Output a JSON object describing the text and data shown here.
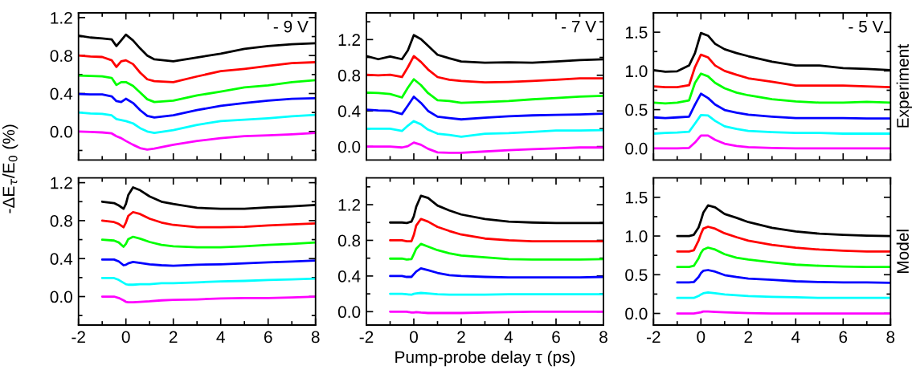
{
  "chart_data": [
    {
      "type": "line",
      "x": [
        -2,
        -1.5,
        -1,
        -0.6,
        -0.4,
        -0.2,
        0,
        0.3,
        0.6,
        0.9,
        1.2,
        2,
        3,
        4,
        5,
        6,
        7,
        8
      ],
      "xlim": [
        -2,
        8
      ],
      "ylim": [
        -0.3,
        1.25
      ],
      "xticks": [
        -2,
        {
          "value": -1,
          "label": null
        },
        0,
        {
          "value": 1,
          "label": null
        },
        2,
        {
          "value": 3,
          "label": null
        },
        4,
        {
          "value": 5,
          "label": null
        },
        6,
        {
          "value": 7,
          "label": null
        },
        8
      ],
      "yticks": [
        {
          "value": -0.2,
          "label": null
        },
        {
          "value": 0,
          "label": "0.0"
        },
        {
          "value": 0.2,
          "label": null
        },
        {
          "value": 0.4,
          "label": "0.4"
        },
        {
          "value": 0.6,
          "label": null
        },
        {
          "value": 0.8,
          "label": "0.8"
        },
        {
          "value": 1.0,
          "label": null
        },
        {
          "value": 1.2,
          "label": "1.2"
        }
      ],
      "tick_labels": "y",
      "annotations": [
        "- 9 V"
      ],
      "ylabel": "-ΔE$_{τ}$/E$_{0}$ (%)",
      "series": [
        {
          "color": "#000000",
          "values": [
            1.01,
            0.99,
            0.98,
            0.97,
            0.9,
            0.96,
            1.02,
            0.96,
            0.875,
            0.8,
            0.76,
            0.74,
            0.78,
            0.82,
            0.87,
            0.9,
            0.92,
            0.93
          ]
        },
        {
          "color": "#ff0000",
          "values": [
            0.8,
            0.79,
            0.785,
            0.75,
            0.68,
            0.74,
            0.75,
            0.71,
            0.62,
            0.55,
            0.53,
            0.52,
            0.58,
            0.635,
            0.66,
            0.69,
            0.72,
            0.73
          ]
        },
        {
          "color": "#00ff00",
          "values": [
            0.59,
            0.585,
            0.58,
            0.565,
            0.49,
            0.52,
            0.52,
            0.48,
            0.41,
            0.34,
            0.31,
            0.325,
            0.38,
            0.42,
            0.465,
            0.485,
            0.52,
            0.54
          ]
        },
        {
          "color": "#0000ff",
          "values": [
            0.395,
            0.39,
            0.39,
            0.37,
            0.32,
            0.31,
            0.345,
            0.3,
            0.225,
            0.165,
            0.147,
            0.17,
            0.225,
            0.27,
            0.3,
            0.325,
            0.345,
            0.35
          ]
        },
        {
          "color": "#00ffff",
          "values": [
            0.2,
            0.19,
            0.185,
            0.17,
            0.13,
            0.12,
            0.11,
            0.085,
            0.035,
            0.0,
            -0.015,
            0.015,
            0.07,
            0.11,
            0.125,
            0.14,
            0.16,
            0.175
          ]
        },
        {
          "color": "#ff00ff",
          "values": [
            0.0,
            -0.005,
            -0.01,
            -0.02,
            -0.05,
            -0.07,
            -0.1,
            -0.14,
            -0.175,
            -0.19,
            -0.18,
            -0.14,
            -0.1,
            -0.07,
            -0.05,
            -0.04,
            -0.03,
            -0.015
          ]
        }
      ]
    },
    {
      "type": "line",
      "x": [
        -2,
        -1.5,
        -1,
        -0.5,
        -0.25,
        0,
        0.3,
        0.6,
        1,
        1.5,
        2,
        3,
        4,
        5,
        6,
        7,
        8
      ],
      "xlim": [
        -2,
        8
      ],
      "ylim": [
        -0.15,
        1.5
      ],
      "xticks": [
        -2,
        {
          "value": -1,
          "label": null
        },
        0,
        {
          "value": 1,
          "label": null
        },
        2,
        {
          "value": 3,
          "label": null
        },
        4,
        {
          "value": 5,
          "label": null
        },
        6,
        {
          "value": 7,
          "label": null
        },
        8
      ],
      "yticks": [
        {
          "value": 0,
          "label": "0.0"
        },
        {
          "value": 0.2,
          "label": null
        },
        {
          "value": 0.4,
          "label": "0.4"
        },
        {
          "value": 0.6,
          "label": null
        },
        {
          "value": 0.8,
          "label": "0.8"
        },
        {
          "value": 1.0,
          "label": null
        },
        {
          "value": 1.2,
          "label": "1.2"
        },
        {
          "value": 1.4,
          "label": null
        }
      ],
      "tick_labels": "y",
      "annotations": [
        "- 7 V"
      ],
      "series": [
        {
          "color": "#000000",
          "values": [
            1.015,
            0.98,
            1.01,
            0.98,
            1.08,
            1.25,
            1.205,
            1.13,
            1.03,
            0.99,
            0.955,
            0.94,
            0.945,
            0.94,
            0.955,
            0.97,
            0.98
          ]
        },
        {
          "color": "#ff0000",
          "values": [
            0.805,
            0.8,
            0.805,
            0.78,
            0.89,
            1.015,
            0.95,
            0.865,
            0.78,
            0.75,
            0.735,
            0.72,
            0.725,
            0.735,
            0.75,
            0.765,
            0.765
          ]
        },
        {
          "color": "#00ff00",
          "values": [
            0.605,
            0.6,
            0.59,
            0.55,
            0.66,
            0.755,
            0.69,
            0.6,
            0.52,
            0.51,
            0.49,
            0.5,
            0.51,
            0.53,
            0.545,
            0.56,
            0.57
          ]
        },
        {
          "color": "#0000ff",
          "values": [
            0.415,
            0.405,
            0.4,
            0.365,
            0.46,
            0.56,
            0.49,
            0.4,
            0.335,
            0.32,
            0.305,
            0.325,
            0.34,
            0.35,
            0.355,
            0.36,
            0.37
          ]
        },
        {
          "color": "#00ffff",
          "values": [
            0.2,
            0.2,
            0.2,
            0.175,
            0.235,
            0.285,
            0.25,
            0.19,
            0.145,
            0.13,
            0.11,
            0.145,
            0.15,
            0.165,
            0.18,
            0.18,
            0.185
          ]
        },
        {
          "color": "#ff00ff",
          "values": [
            0.0,
            0.0,
            0.0,
            -0.01,
            0.005,
            0.045,
            0.02,
            -0.025,
            -0.065,
            -0.07,
            -0.07,
            -0.055,
            -0.04,
            -0.03,
            -0.02,
            -0.01,
            -0.01
          ]
        }
      ]
    },
    {
      "type": "line",
      "x": [
        -2,
        -1.5,
        -1,
        -0.5,
        -0.25,
        0,
        0.3,
        0.6,
        1,
        1.5,
        2,
        3,
        4,
        5,
        6,
        7,
        8
      ],
      "xlim": [
        -2,
        8
      ],
      "ylim": [
        -0.15,
        1.75
      ],
      "xticks": [
        -2,
        {
          "value": -1,
          "label": null
        },
        0,
        {
          "value": 1,
          "label": null
        },
        2,
        {
          "value": 3,
          "label": null
        },
        4,
        {
          "value": 5,
          "label": null
        },
        6,
        {
          "value": 7,
          "label": null
        },
        8
      ],
      "yticks": [
        {
          "value": 0,
          "label": "0.0"
        },
        {
          "value": 0.25,
          "label": null
        },
        {
          "value": 0.5,
          "label": "0.5"
        },
        {
          "value": 0.75,
          "label": null
        },
        {
          "value": 1.0,
          "label": "1.0"
        },
        {
          "value": 1.25,
          "label": null
        },
        {
          "value": 1.5,
          "label": "1.5"
        }
      ],
      "tick_labels": "y",
      "annotations": [
        "- 5 V"
      ],
      "y2label": "Experiment",
      "series": [
        {
          "color": "#000000",
          "values": [
            1.01,
            0.99,
            0.995,
            1.07,
            1.23,
            1.49,
            1.455,
            1.35,
            1.28,
            1.23,
            1.19,
            1.12,
            1.07,
            1.07,
            1.035,
            1.025,
            1.01
          ]
        },
        {
          "color": "#ff0000",
          "values": [
            0.8,
            0.79,
            0.79,
            0.815,
            1.05,
            1.21,
            1.175,
            1.07,
            1.0,
            0.95,
            0.905,
            0.86,
            0.81,
            0.81,
            0.81,
            0.8,
            0.79
          ]
        },
        {
          "color": "#00ff00",
          "values": [
            0.59,
            0.58,
            0.59,
            0.62,
            0.845,
            0.965,
            0.93,
            0.845,
            0.775,
            0.72,
            0.685,
            0.635,
            0.605,
            0.59,
            0.59,
            0.6,
            0.59
          ]
        },
        {
          "color": "#0000ff",
          "values": [
            0.4,
            0.39,
            0.4,
            0.41,
            0.565,
            0.705,
            0.65,
            0.565,
            0.495,
            0.46,
            0.435,
            0.41,
            0.39,
            0.39,
            0.39,
            0.385,
            0.385
          ]
        },
        {
          "color": "#00ffff",
          "values": [
            0.19,
            0.2,
            0.205,
            0.215,
            0.32,
            0.43,
            0.425,
            0.355,
            0.285,
            0.25,
            0.225,
            0.21,
            0.2,
            0.2,
            0.19,
            0.19,
            0.19
          ]
        },
        {
          "color": "#ff00ff",
          "values": [
            0.0,
            0.0,
            0.0,
            0.005,
            0.075,
            0.165,
            0.165,
            0.11,
            0.06,
            0.03,
            0.015,
            0.005,
            0.0,
            0.0,
            0.0,
            0.0,
            0.0
          ]
        }
      ]
    },
    {
      "type": "line",
      "x": [
        -1,
        -0.5,
        -0.3,
        -0.1,
        0,
        0.1,
        0.3,
        0.6,
        1,
        1.5,
        2,
        3,
        4,
        5,
        6,
        7,
        8
      ],
      "xlim": [
        -2,
        8
      ],
      "ylim": [
        -0.3,
        1.25
      ],
      "xticks": [
        -2,
        {
          "value": -1,
          "label": null
        },
        0,
        {
          "value": 1,
          "label": null
        },
        2,
        {
          "value": 3,
          "label": null
        },
        4,
        {
          "value": 5,
          "label": null
        },
        6,
        {
          "value": 7,
          "label": null
        },
        8
      ],
      "yticks": [
        {
          "value": -0.2,
          "label": null
        },
        {
          "value": 0,
          "label": "0.0"
        },
        {
          "value": 0.2,
          "label": null
        },
        {
          "value": 0.4,
          "label": "0.4"
        },
        {
          "value": 0.6,
          "label": null
        },
        {
          "value": 0.8,
          "label": "0.8"
        },
        {
          "value": 1.0,
          "label": null
        },
        {
          "value": 1.2,
          "label": "1.2"
        }
      ],
      "series": [
        {
          "color": "#000000",
          "values": [
            1.0,
            0.985,
            0.96,
            0.925,
            0.975,
            1.07,
            1.15,
            1.12,
            1.055,
            1.0,
            0.975,
            0.935,
            0.925,
            0.925,
            0.94,
            0.95,
            0.965
          ]
        },
        {
          "color": "#ff0000",
          "values": [
            0.8,
            0.785,
            0.765,
            0.73,
            0.78,
            0.85,
            0.89,
            0.87,
            0.82,
            0.78,
            0.755,
            0.73,
            0.73,
            0.735,
            0.75,
            0.76,
            0.77
          ]
        },
        {
          "color": "#00ff00",
          "values": [
            0.6,
            0.59,
            0.57,
            0.525,
            0.555,
            0.605,
            0.63,
            0.61,
            0.575,
            0.545,
            0.53,
            0.52,
            0.52,
            0.53,
            0.545,
            0.555,
            0.57
          ]
        },
        {
          "color": "#0000ff",
          "values": [
            0.39,
            0.39,
            0.37,
            0.33,
            0.335,
            0.35,
            0.365,
            0.355,
            0.34,
            0.33,
            0.325,
            0.335,
            0.34,
            0.35,
            0.36,
            0.37,
            0.38
          ]
        },
        {
          "color": "#00ffff",
          "values": [
            0.195,
            0.195,
            0.175,
            0.145,
            0.13,
            0.125,
            0.125,
            0.13,
            0.13,
            0.14,
            0.14,
            0.15,
            0.16,
            0.165,
            0.175,
            0.18,
            0.19
          ]
        },
        {
          "color": "#ff00ff",
          "values": [
            0.0,
            0.0,
            -0.015,
            -0.04,
            -0.055,
            -0.06,
            -0.06,
            -0.055,
            -0.05,
            -0.04,
            -0.035,
            -0.03,
            -0.02,
            -0.015,
            -0.015,
            -0.01,
            0.0
          ]
        }
      ]
    },
    {
      "type": "line",
      "x": [
        -1,
        -0.5,
        -0.3,
        -0.1,
        0,
        0.1,
        0.3,
        0.6,
        1,
        1.5,
        2,
        3,
        4,
        5,
        6,
        7,
        8
      ],
      "xlim": [
        -2,
        8
      ],
      "ylim": [
        -0.15,
        1.5
      ],
      "xticks": [
        -2,
        {
          "value": -1,
          "label": null
        },
        0,
        {
          "value": 1,
          "label": null
        },
        2,
        {
          "value": 3,
          "label": null
        },
        4,
        {
          "value": 5,
          "label": null
        },
        6,
        {
          "value": 7,
          "label": null
        },
        8
      ],
      "yticks": [
        {
          "value": 0,
          "label": "0.0"
        },
        {
          "value": 0.2,
          "label": null
        },
        {
          "value": 0.4,
          "label": "0.4"
        },
        {
          "value": 0.6,
          "label": null
        },
        {
          "value": 0.8,
          "label": "0.8"
        },
        {
          "value": 1.0,
          "label": null
        },
        {
          "value": 1.2,
          "label": "1.2"
        },
        {
          "value": 1.4,
          "label": null
        }
      ],
      "xlabel": "Pump-probe delay τ (ps)",
      "series": [
        {
          "color": "#000000",
          "values": [
            1.0,
            1.0,
            0.995,
            1.01,
            1.07,
            1.175,
            1.3,
            1.275,
            1.19,
            1.135,
            1.09,
            1.04,
            1.01,
            1.0,
            0.995,
            0.995,
            0.995
          ]
        },
        {
          "color": "#ff0000",
          "values": [
            0.8,
            0.8,
            0.79,
            0.79,
            0.86,
            0.965,
            1.04,
            1.01,
            0.95,
            0.905,
            0.865,
            0.82,
            0.8,
            0.79,
            0.79,
            0.79,
            0.79
          ]
        },
        {
          "color": "#00ff00",
          "values": [
            0.595,
            0.595,
            0.585,
            0.59,
            0.645,
            0.705,
            0.76,
            0.73,
            0.69,
            0.655,
            0.63,
            0.61,
            0.59,
            0.585,
            0.585,
            0.585,
            0.59
          ]
        },
        {
          "color": "#0000ff",
          "values": [
            0.4,
            0.4,
            0.39,
            0.39,
            0.42,
            0.45,
            0.485,
            0.465,
            0.435,
            0.41,
            0.4,
            0.39,
            0.385,
            0.385,
            0.385,
            0.385,
            0.39
          ]
        },
        {
          "color": "#00ffff",
          "values": [
            0.2,
            0.2,
            0.195,
            0.19,
            0.2,
            0.205,
            0.21,
            0.205,
            0.195,
            0.19,
            0.19,
            0.19,
            0.195,
            0.195,
            0.195,
            0.195,
            0.195
          ]
        },
        {
          "color": "#ff00ff",
          "values": [
            0.0,
            0.0,
            0.0,
            -0.01,
            -0.01,
            -0.005,
            -0.01,
            -0.015,
            -0.015,
            -0.015,
            -0.015,
            -0.01,
            -0.005,
            0.0,
            0.0,
            0.0,
            0.0
          ]
        }
      ]
    },
    {
      "type": "line",
      "x": [
        -1,
        -0.5,
        -0.3,
        -0.1,
        0,
        0.1,
        0.3,
        0.6,
        1,
        1.5,
        2,
        3,
        4,
        5,
        6,
        7,
        8
      ],
      "xlim": [
        -2,
        8
      ],
      "ylim": [
        -0.15,
        1.75
      ],
      "xticks": [
        -2,
        {
          "value": -1,
          "label": null
        },
        0,
        {
          "value": 1,
          "label": null
        },
        2,
        {
          "value": 3,
          "label": null
        },
        4,
        {
          "value": 5,
          "label": null
        },
        6,
        {
          "value": 7,
          "label": null
        },
        8
      ],
      "yticks": [
        {
          "value": 0,
          "label": "0.0"
        },
        {
          "value": 0.25,
          "label": null
        },
        {
          "value": 0.5,
          "label": "0.5"
        },
        {
          "value": 0.75,
          "label": null
        },
        {
          "value": 1.0,
          "label": "1.0"
        },
        {
          "value": 1.25,
          "label": null
        },
        {
          "value": 1.5,
          "label": "1.5"
        }
      ],
      "y2label": "Model",
      "series": [
        {
          "color": "#000000",
          "values": [
            1.0,
            1.0,
            1.015,
            1.11,
            1.2,
            1.3,
            1.395,
            1.37,
            1.285,
            1.235,
            1.18,
            1.105,
            1.06,
            1.03,
            1.015,
            1.005,
            1.0
          ]
        },
        {
          "color": "#ff0000",
          "values": [
            0.8,
            0.8,
            0.815,
            0.94,
            1.025,
            1.095,
            1.12,
            1.095,
            1.035,
            0.985,
            0.94,
            0.885,
            0.85,
            0.825,
            0.81,
            0.8,
            0.8
          ]
        },
        {
          "color": "#00ff00",
          "values": [
            0.6,
            0.6,
            0.615,
            0.71,
            0.78,
            0.825,
            0.85,
            0.825,
            0.765,
            0.72,
            0.695,
            0.66,
            0.63,
            0.615,
            0.605,
            0.6,
            0.6
          ]
        },
        {
          "color": "#0000ff",
          "values": [
            0.4,
            0.4,
            0.405,
            0.47,
            0.52,
            0.55,
            0.56,
            0.54,
            0.495,
            0.47,
            0.45,
            0.435,
            0.415,
            0.405,
            0.4,
            0.4,
            0.395
          ]
        },
        {
          "color": "#00ffff",
          "values": [
            0.2,
            0.2,
            0.2,
            0.225,
            0.245,
            0.26,
            0.27,
            0.26,
            0.245,
            0.235,
            0.225,
            0.215,
            0.21,
            0.2,
            0.2,
            0.2,
            0.2
          ]
        },
        {
          "color": "#ff00ff",
          "values": [
            0.0,
            0.0,
            0.0,
            0.01,
            0.015,
            0.025,
            0.025,
            0.02,
            0.015,
            0.01,
            0.005,
            0.0,
            0.0,
            0.0,
            0.0,
            0.0,
            0.0
          ]
        }
      ]
    }
  ]
}
